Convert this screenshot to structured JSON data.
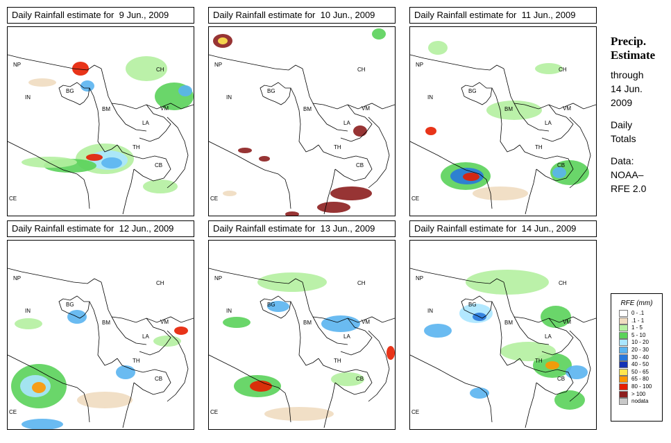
{
  "panels": [
    {
      "title_prefix": "Daily Rainfall estimate for",
      "date": "9 Jun., 2009"
    },
    {
      "title_prefix": "Daily Rainfall estimate for",
      "date": "10 Jun., 2009"
    },
    {
      "title_prefix": "Daily Rainfall estimate for",
      "date": "11 Jun., 2009"
    },
    {
      "title_prefix": "Daily Rainfall estimate for",
      "date": "12 Jun., 2009"
    },
    {
      "title_prefix": "Daily Rainfall estimate for",
      "date": "13 Jun., 2009"
    },
    {
      "title_prefix": "Daily Rainfall estimate for",
      "date": "14 Jun., 2009"
    }
  ],
  "map_labels": [
    "NP",
    "CH",
    "IN",
    "BG",
    "BM",
    "VM",
    "LA",
    "TH",
    "CB",
    "CE"
  ],
  "sidebar": {
    "title_line1": "Precip.",
    "title_line2": "Estimate",
    "through": "through",
    "through_date_line1": "14 Jun.",
    "through_date_line2": "2009",
    "daily_line1": "Daily",
    "daily_line2": "Totals",
    "data_line1": "Data:",
    "data_line2": "NOAA–",
    "data_line3": "RFE 2.0"
  },
  "legend": {
    "title": "RFE (mm)",
    "items": [
      {
        "label": "0 - .1",
        "color": "#ffffff"
      },
      {
        "label": ".1 - 1",
        "color": "#f0dcc0"
      },
      {
        "label": "1 - 5",
        "color": "#b4f0a0"
      },
      {
        "label": "5 - 10",
        "color": "#5ad25a"
      },
      {
        "label": "10 - 20",
        "color": "#aae6ff"
      },
      {
        "label": "20 - 30",
        "color": "#5ab4f0"
      },
      {
        "label": "30 - 40",
        "color": "#2878dc"
      },
      {
        "label": "40 - 50",
        "color": "#1432b4"
      },
      {
        "label": "50 - 65",
        "color": "#ffe650"
      },
      {
        "label": "65 - 80",
        "color": "#ff9600"
      },
      {
        "label": "80 - 100",
        "color": "#e61e00"
      },
      {
        "label": "> 100",
        "color": "#8c1e1e"
      },
      {
        "label": "nodata",
        "color": "#c8c8c8"
      }
    ]
  }
}
